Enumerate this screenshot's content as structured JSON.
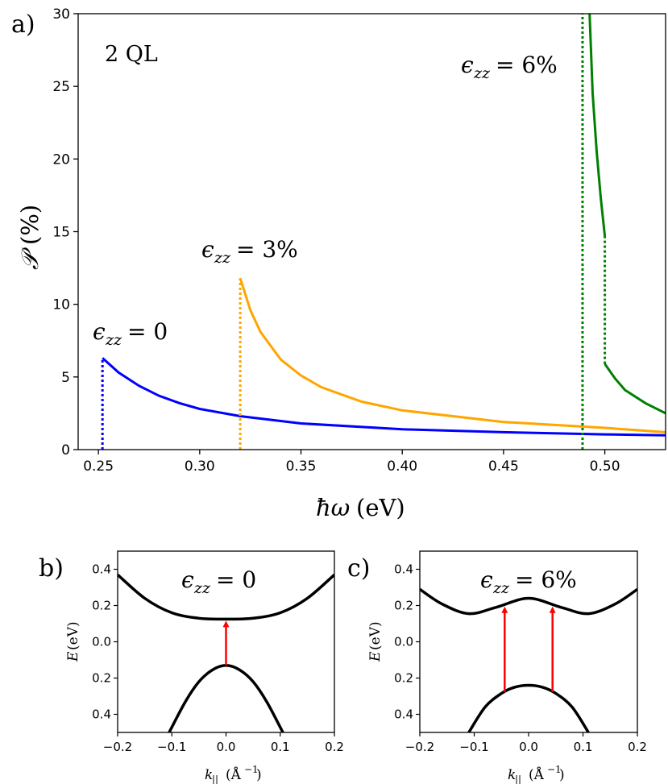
{
  "chart_data": [
    {
      "type": "line",
      "panel": "a)",
      "annotation": "2 QL",
      "xlabel": "ħω (eV)",
      "ylabel": "𝒫 (%)",
      "xlim": [
        0.24,
        0.53
      ],
      "ylim": [
        0,
        30
      ],
      "xticks": [
        "0.25",
        "0.30",
        "0.35",
        "0.40",
        "0.45",
        "0.50"
      ],
      "yticks": [
        "0",
        "5",
        "10",
        "15",
        "20",
        "25",
        "30"
      ],
      "grid": false,
      "series": [
        {
          "name": "ϵzz = 0",
          "color": "#0000ff",
          "threshold": 0.252,
          "x": [
            0.252,
            0.26,
            0.27,
            0.28,
            0.29,
            0.3,
            0.32,
            0.35,
            0.4,
            0.45,
            0.5,
            0.53
          ],
          "y": [
            6.3,
            5.3,
            4.4,
            3.7,
            3.2,
            2.8,
            2.3,
            1.8,
            1.4,
            1.2,
            1.05,
            0.98
          ]
        },
        {
          "name": "ϵzz = 3%",
          "color": "#ffa500",
          "threshold": 0.32,
          "x": [
            0.32,
            0.325,
            0.33,
            0.34,
            0.35,
            0.36,
            0.38,
            0.4,
            0.45,
            0.5,
            0.53
          ],
          "y": [
            11.8,
            9.6,
            8.1,
            6.2,
            5.1,
            4.3,
            3.3,
            2.7,
            1.9,
            1.5,
            1.2
          ]
        },
        {
          "name": "ϵzz = 6%",
          "color": "#008000",
          "threshold": 0.489,
          "x1": [
            0.4925,
            0.494,
            0.496,
            0.498,
            0.5
          ],
          "y1": [
            30,
            24.5,
            20.5,
            17.3,
            14.7
          ],
          "threshold2": 0.5,
          "x2": [
            0.5,
            0.505,
            0.51,
            0.52,
            0.53
          ],
          "y2": [
            5.9,
            4.9,
            4.1,
            3.2,
            2.5
          ]
        }
      ]
    },
    {
      "type": "line",
      "panel": "b)",
      "title": "ϵzz = 0",
      "xlabel": "k|| (Å−1)",
      "ylabel": "E (eV)",
      "xlim": [
        -0.2,
        0.2
      ],
      "ylim": [
        -0.5,
        0.5
      ],
      "xticks": [
        "−0.2",
        "−0.1",
        "0.0",
        "0.1",
        "0.2"
      ],
      "yticks": [
        "0.4",
        "0.2",
        "0.0",
        "0.2",
        "0.4"
      ],
      "conduction_band": {
        "x": [
          -0.2,
          -0.15,
          -0.1,
          -0.05,
          0.0,
          0.05,
          0.1,
          0.15,
          0.2
        ],
        "y": [
          0.37,
          0.24,
          0.16,
          0.13,
          0.125,
          0.13,
          0.16,
          0.24,
          0.37
        ]
      },
      "valence_band": {
        "x": [
          -0.105,
          -0.075,
          -0.05,
          -0.025,
          0.0,
          0.025,
          0.05,
          0.075,
          0.105
        ],
        "y": [
          -0.5,
          -0.33,
          -0.22,
          -0.155,
          -0.13,
          -0.155,
          -0.22,
          -0.33,
          -0.5
        ]
      },
      "transitions_k": [
        0.0
      ]
    },
    {
      "type": "line",
      "panel": "c)",
      "title": "ϵzz = 6%",
      "xlabel": "k|| (Å−1)",
      "ylabel": "E (eV)",
      "xlim": [
        -0.2,
        0.2
      ],
      "ylim": [
        -0.5,
        0.5
      ],
      "xticks": [
        "−0.2",
        "−0.1",
        "0.0",
        "0.1",
        "0.2"
      ],
      "yticks": [
        "0.4",
        "0.2",
        "0.0",
        "0.2",
        "0.4"
      ],
      "conduction_band": {
        "x": [
          -0.2,
          -0.16,
          -0.11,
          -0.06,
          0.0,
          0.06,
          0.11,
          0.16,
          0.2
        ],
        "y": [
          0.29,
          0.21,
          0.155,
          0.19,
          0.24,
          0.19,
          0.155,
          0.21,
          0.29
        ]
      },
      "valence_band": {
        "x": [
          -0.11,
          -0.08,
          -0.05,
          -0.025,
          0.0,
          0.025,
          0.05,
          0.08,
          0.11
        ],
        "y": [
          -0.5,
          -0.36,
          -0.285,
          -0.25,
          -0.24,
          -0.25,
          -0.285,
          -0.36,
          -0.5
        ]
      },
      "transitions_k": [
        -0.044,
        0.044
      ]
    }
  ]
}
